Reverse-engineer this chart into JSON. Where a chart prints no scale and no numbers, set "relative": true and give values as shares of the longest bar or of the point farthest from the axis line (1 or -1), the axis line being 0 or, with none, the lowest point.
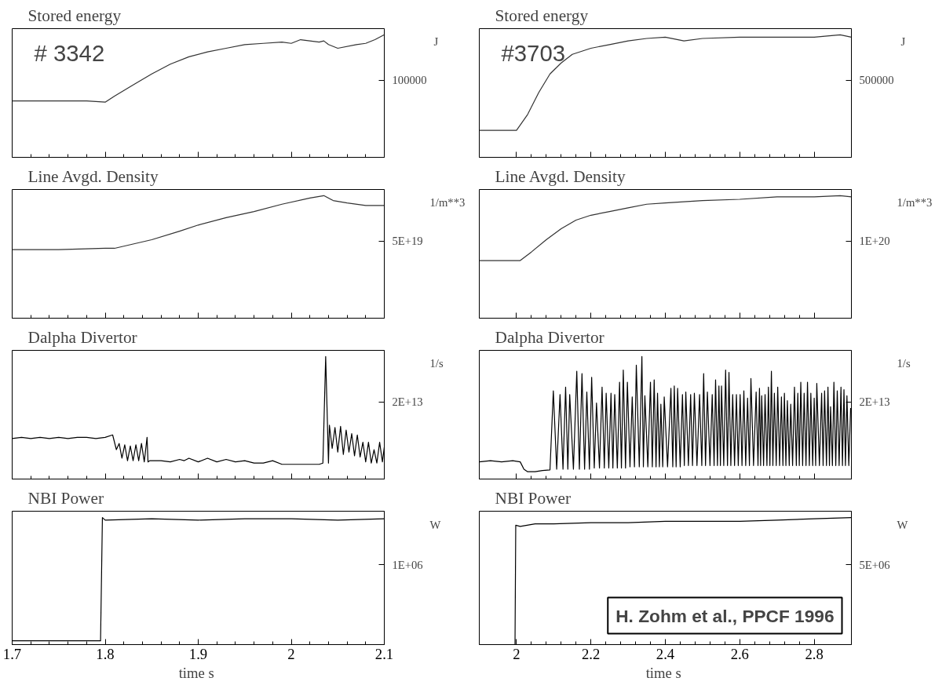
{
  "chart_data": [
    {
      "type": "line",
      "title": "Stored energy",
      "ylabel": "J",
      "relative": true,
      "xlim": [
        1.7,
        2.1
      ],
      "xticks": [
        1.7,
        1.8,
        1.9,
        2,
        2.1
      ],
      "tick_labels": false,
      "annotations": [
        "# 3342",
        "100000"
      ],
      "series": [
        {
          "color": "#333333",
          "x": [
            1.7,
            1.72,
            1.75,
            1.78,
            1.8,
            1.81,
            1.83,
            1.85,
            1.87,
            1.89,
            1.91,
            1.93,
            1.95,
            1.97,
            1.99,
            2.0,
            2.01,
            2.03,
            2.035,
            2.04,
            2.05,
            2.07,
            2.08,
            2.09,
            2.1
          ],
          "values": [
            0.46,
            0.46,
            0.46,
            0.46,
            0.45,
            0.5,
            0.59,
            0.68,
            0.76,
            0.82,
            0.86,
            0.89,
            0.92,
            0.93,
            0.94,
            0.93,
            0.96,
            0.94,
            0.95,
            0.92,
            0.89,
            0.92,
            0.93,
            0.96,
            1.0
          ]
        }
      ]
    },
    {
      "type": "line",
      "title": "Stored energy",
      "ylabel": "J",
      "relative": true,
      "xlim": [
        1.9,
        2.9
      ],
      "xticks": [
        2,
        2.2,
        2.4,
        2.6,
        2.8
      ],
      "tick_labels": false,
      "annotations": [
        "#3703",
        "500000"
      ],
      "series": [
        {
          "color": "#333333",
          "x": [
            1.9,
            2.0,
            2.03,
            2.06,
            2.09,
            2.12,
            2.15,
            2.2,
            2.25,
            2.3,
            2.35,
            2.4,
            2.45,
            2.5,
            2.6,
            2.7,
            2.8,
            2.87,
            2.9
          ],
          "values": [
            0.22,
            0.22,
            0.35,
            0.53,
            0.68,
            0.77,
            0.84,
            0.89,
            0.92,
            0.95,
            0.97,
            0.98,
            0.95,
            0.97,
            0.98,
            0.98,
            0.98,
            1.0,
            0.98
          ]
        }
      ]
    },
    {
      "type": "line",
      "title": "Line Avgd. Density",
      "ylabel": "1/m**3",
      "relative": true,
      "xlim": [
        1.7,
        2.1
      ],
      "xticks": [
        1.7,
        1.8,
        1.9,
        2,
        2.1
      ],
      "tick_labels": false,
      "annotations": [
        "5E+19"
      ],
      "series": [
        {
          "color": "#333333",
          "x": [
            1.7,
            1.75,
            1.8,
            1.81,
            1.85,
            1.88,
            1.9,
            1.93,
            1.96,
            1.99,
            2.02,
            2.035,
            2.045,
            2.06,
            2.08,
            2.1
          ],
          "values": [
            0.56,
            0.56,
            0.57,
            0.57,
            0.64,
            0.71,
            0.76,
            0.82,
            0.87,
            0.93,
            0.98,
            1.0,
            0.96,
            0.94,
            0.92,
            0.92
          ]
        }
      ]
    },
    {
      "type": "line",
      "title": "Line Avgd. Density",
      "ylabel": "1/m**3",
      "relative": true,
      "xlim": [
        1.9,
        2.9
      ],
      "xticks": [
        2,
        2.2,
        2.4,
        2.6,
        2.8
      ],
      "tick_labels": false,
      "annotations": [
        "1E+20"
      ],
      "series": [
        {
          "color": "#333333",
          "x": [
            1.9,
            2.01,
            2.04,
            2.08,
            2.12,
            2.16,
            2.2,
            2.25,
            2.3,
            2.35,
            2.4,
            2.5,
            2.6,
            2.7,
            2.8,
            2.87,
            2.9
          ],
          "values": [
            0.47,
            0.47,
            0.54,
            0.64,
            0.73,
            0.8,
            0.84,
            0.87,
            0.9,
            0.93,
            0.94,
            0.96,
            0.97,
            0.99,
            0.99,
            1.0,
            0.99
          ]
        }
      ]
    },
    {
      "type": "line",
      "title": "Dalpha Divertor",
      "ylabel": "1/s",
      "relative": true,
      "xlim": [
        1.7,
        2.1
      ],
      "xticks": [
        1.7,
        1.8,
        1.9,
        2,
        2.1
      ],
      "tick_labels": false,
      "annotations": [
        "2E+13"
      ],
      "series": [
        {
          "color": "#000000",
          "x": [
            1.7,
            1.71,
            1.72,
            1.73,
            1.74,
            1.75,
            1.76,
            1.77,
            1.78,
            1.79,
            1.8,
            1.808,
            1.812,
            1.815,
            1.818,
            1.821,
            1.824,
            1.827,
            1.83,
            1.833,
            1.836,
            1.839,
            1.842,
            1.845,
            1.846,
            1.848,
            1.86,
            1.87,
            1.88,
            1.885,
            1.89,
            1.9,
            1.91,
            1.92,
            1.93,
            1.94,
            1.95,
            1.96,
            1.97,
            1.98,
            1.99,
            2.0,
            2.01,
            2.02,
            2.03,
            2.034,
            2.037,
            2.04,
            2.041,
            2.044,
            2.047,
            2.05,
            2.053,
            2.056,
            2.059,
            2.062,
            2.065,
            2.068,
            2.071,
            2.074,
            2.077,
            2.08,
            2.083,
            2.086,
            2.089,
            2.092,
            2.095,
            2.098,
            2.1
          ],
          "values": [
            0.33,
            0.34,
            0.33,
            0.34,
            0.33,
            0.34,
            0.33,
            0.34,
            0.34,
            0.33,
            0.34,
            0.36,
            0.24,
            0.29,
            0.17,
            0.28,
            0.15,
            0.27,
            0.15,
            0.28,
            0.15,
            0.29,
            0.14,
            0.34,
            0.14,
            0.15,
            0.15,
            0.14,
            0.16,
            0.15,
            0.17,
            0.14,
            0.17,
            0.14,
            0.16,
            0.14,
            0.15,
            0.13,
            0.13,
            0.15,
            0.12,
            0.12,
            0.12,
            0.12,
            0.12,
            0.13,
            1.0,
            0.13,
            0.44,
            0.25,
            0.42,
            0.22,
            0.43,
            0.2,
            0.4,
            0.22,
            0.37,
            0.19,
            0.36,
            0.18,
            0.3,
            0.14,
            0.3,
            0.13,
            0.24,
            0.13,
            0.3,
            0.14,
            0.26
          ]
        }
      ]
    },
    {
      "type": "line",
      "title": "Dalpha Divertor",
      "ylabel": "1/s",
      "relative": true,
      "xlim": [
        1.9,
        2.9
      ],
      "xticks": [
        2,
        2.2,
        2.4,
        2.6,
        2.8
      ],
      "tick_labels": false,
      "annotations": [
        "2E+13"
      ],
      "series": [
        {
          "color": "#000000",
          "x": [
            1.9,
            1.93,
            1.96,
            1.99,
            2.01,
            2.02,
            2.03,
            2.05,
            2.07,
            2.09,
            2.099,
            2.108,
            2.117,
            2.125,
            2.132,
            2.138,
            2.143,
            2.153,
            2.162,
            2.169,
            2.176,
            2.183,
            2.189,
            2.196,
            2.202,
            2.209,
            2.215,
            2.223,
            2.23,
            2.236,
            2.241,
            2.248,
            2.254,
            2.259,
            2.264,
            2.271,
            2.277,
            2.282,
            2.287,
            2.293,
            2.298,
            2.305,
            2.311,
            2.317,
            2.322,
            2.33,
            2.337,
            2.341,
            2.345,
            2.353,
            2.36,
            2.365,
            2.37,
            2.375,
            2.379,
            2.384,
            2.388,
            2.393,
            2.397,
            2.406,
            2.415,
            2.42,
            2.424,
            2.429,
            2.433,
            2.44,
            2.446,
            2.451,
            2.455,
            2.462,
            2.468,
            2.473,
            2.478,
            2.485,
            2.492,
            2.498,
            2.503,
            2.508,
            2.513,
            2.52,
            2.526,
            2.531,
            2.535,
            2.54,
            2.544,
            2.548,
            2.551,
            2.557,
            2.562,
            2.567,
            2.571,
            2.576,
            2.581,
            2.586,
            2.591,
            2.596,
            2.601,
            2.606,
            2.611,
            2.616,
            2.621,
            2.626,
            2.63,
            2.637,
            2.644,
            2.649,
            2.653,
            2.656,
            2.659,
            2.664,
            2.668,
            2.673,
            2.677,
            2.681,
            2.685,
            2.689,
            2.693,
            2.698,
            2.702,
            2.707,
            2.712,
            2.716,
            2.72,
            2.724,
            2.728,
            2.733,
            2.737,
            2.742,
            2.747,
            2.752,
            2.756,
            2.76,
            2.764,
            2.769,
            2.773,
            2.778,
            2.782,
            2.787,
            2.791,
            2.796,
            2.8,
            2.804,
            2.807,
            2.814,
            2.82,
            2.824,
            2.828,
            2.833,
            2.837,
            2.841,
            2.844,
            2.849,
            2.853,
            2.858,
            2.862,
            2.867,
            2.872,
            2.876,
            2.88,
            2.884,
            2.888,
            2.893,
            2.898
          ],
          "values": [
            0.14,
            0.15,
            0.14,
            0.15,
            0.14,
            0.08,
            0.06,
            0.06,
            0.07,
            0.075,
            0.72,
            0.08,
            0.69,
            0.08,
            0.75,
            0.08,
            0.69,
            0.08,
            0.88,
            0.08,
            0.86,
            0.08,
            0.71,
            0.08,
            0.83,
            0.09,
            0.62,
            0.09,
            0.75,
            0.09,
            0.7,
            0.09,
            0.7,
            0.09,
            0.69,
            0.09,
            0.79,
            0.09,
            0.89,
            0.09,
            0.79,
            0.1,
            0.67,
            0.1,
            0.93,
            0.1,
            1.0,
            0.1,
            0.68,
            0.1,
            0.79,
            0.1,
            0.81,
            0.1,
            0.7,
            0.1,
            0.61,
            0.1,
            0.67,
            0.1,
            0.74,
            0.1,
            0.76,
            0.1,
            0.74,
            0.1,
            0.69,
            0.11,
            0.71,
            0.11,
            0.69,
            0.11,
            0.7,
            0.11,
            0.69,
            0.11,
            0.86,
            0.11,
            0.71,
            0.11,
            0.69,
            0.11,
            0.81,
            0.11,
            0.76,
            0.11,
            0.76,
            0.11,
            0.89,
            0.11,
            0.87,
            0.11,
            0.69,
            0.11,
            0.69,
            0.11,
            0.69,
            0.11,
            0.72,
            0.11,
            0.66,
            0.11,
            0.82,
            0.11,
            0.71,
            0.11,
            0.74,
            0.11,
            0.68,
            0.11,
            0.69,
            0.11,
            0.75,
            0.11,
            0.88,
            0.11,
            0.7,
            0.11,
            0.75,
            0.11,
            0.67,
            0.11,
            0.7,
            0.11,
            0.64,
            0.11,
            0.61,
            0.11,
            0.75,
            0.11,
            0.7,
            0.11,
            0.79,
            0.11,
            0.7,
            0.11,
            0.79,
            0.11,
            0.7,
            0.11,
            0.66,
            0.11,
            0.78,
            0.11,
            0.7,
            0.11,
            0.72,
            0.11,
            0.75,
            0.11,
            0.59,
            0.11,
            0.79,
            0.11,
            0.72,
            0.11,
            0.75,
            0.11,
            0.73,
            0.11,
            0.68,
            0.11,
            0.58
          ]
        }
      ]
    },
    {
      "type": "line",
      "title": "NBI Power",
      "ylabel": "W",
      "xlabel": "time  s",
      "relative": true,
      "xlim": [
        1.7,
        2.1
      ],
      "xticks": [
        1.7,
        1.8,
        1.9,
        2,
        2.1
      ],
      "tick_labels": "x",
      "annotations": [
        "1E+06"
      ],
      "series": [
        {
          "color": "#000000",
          "x": [
            1.7,
            1.72,
            1.74,
            1.76,
            1.78,
            1.795,
            1.797,
            1.8,
            1.85,
            1.9,
            1.95,
            2.0,
            2.05,
            2.1
          ],
          "values": [
            0.03,
            0.03,
            0.03,
            0.03,
            0.03,
            0.03,
            1.0,
            0.98,
            0.99,
            0.98,
            0.99,
            0.99,
            0.98,
            0.99
          ]
        }
      ]
    },
    {
      "type": "line",
      "title": "NBI Power",
      "ylabel": "W",
      "xlabel": "time  s",
      "relative": true,
      "xlim": [
        1.9,
        2.9
      ],
      "xticks": [
        2,
        2.2,
        2.4,
        2.6,
        2.8
      ],
      "tick_labels": "x",
      "annotations": [
        "H. Zohm et al., PPCF 1996",
        "5E+06"
      ],
      "series": [
        {
          "color": "#000000",
          "x": [
            1.9,
            1.95,
            1.996,
            1.998,
            2.01,
            2.05,
            2.1,
            2.2,
            2.3,
            2.4,
            2.5,
            2.6,
            2.7,
            2.8,
            2.9
          ],
          "values": [
            0,
            0,
            0,
            0.94,
            0.93,
            0.95,
            0.95,
            0.96,
            0.96,
            0.97,
            0.97,
            0.97,
            0.98,
            0.99,
            1.0
          ]
        }
      ]
    }
  ]
}
